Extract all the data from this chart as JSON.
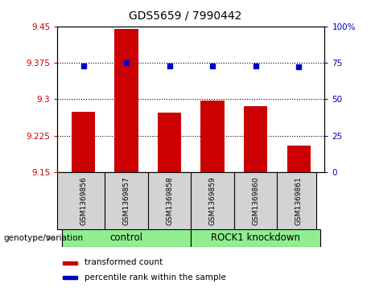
{
  "title": "GDS5659 / 7990442",
  "samples": [
    "GSM1369856",
    "GSM1369857",
    "GSM1369858",
    "GSM1369859",
    "GSM1369860",
    "GSM1369861"
  ],
  "red_values": [
    9.275,
    9.445,
    9.273,
    9.298,
    9.285,
    9.205
  ],
  "blue_values": [
    73,
    75,
    73,
    73,
    73,
    72
  ],
  "ylim_left": [
    9.15,
    9.45
  ],
  "ylim_right": [
    0,
    100
  ],
  "yticks_left": [
    9.15,
    9.225,
    9.3,
    9.375,
    9.45
  ],
  "yticks_right": [
    0,
    25,
    50,
    75,
    100
  ],
  "ytick_labels_left": [
    "9.15",
    "9.225",
    "9.3",
    "9.375",
    "9.45"
  ],
  "ytick_labels_right": [
    "0",
    "25",
    "50",
    "75",
    "100%"
  ],
  "hlines": [
    9.225,
    9.3,
    9.375
  ],
  "bar_color": "#cc0000",
  "dot_color": "#0000cc",
  "bar_width": 0.55,
  "legend_red": "transformed count",
  "legend_blue": "percentile rank within the sample",
  "plot_bg": "#ffffff",
  "sample_label_bg": "#d3d3d3",
  "group_green": "#90ee90",
  "control_label": "control",
  "knockdown_label": "ROCK1 knockdown",
  "genotype_label": "genotype/variation"
}
